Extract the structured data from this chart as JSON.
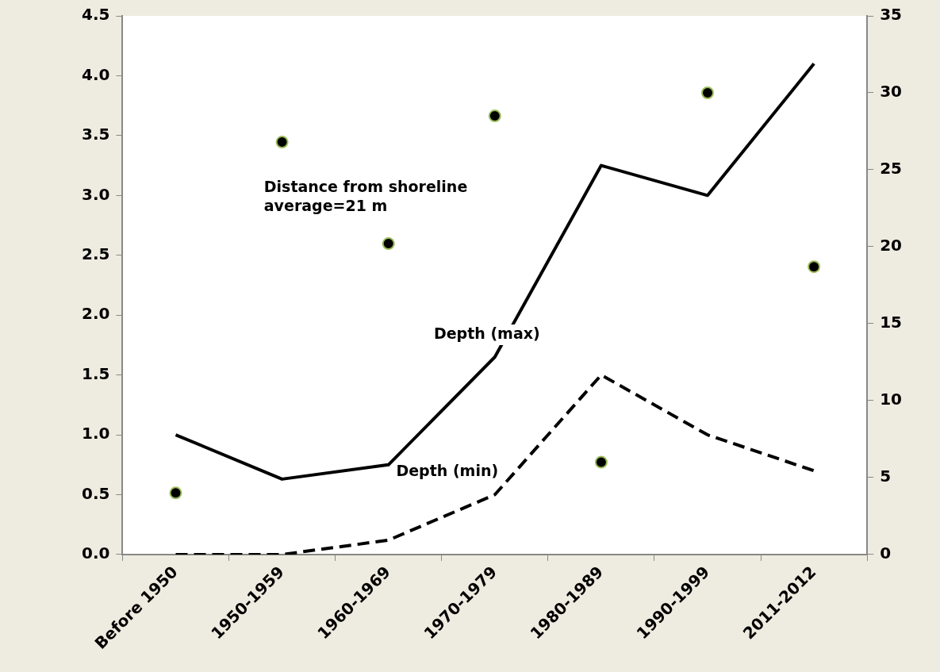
{
  "chart_data": {
    "type": "line",
    "categories": [
      "Before 1950",
      "1950-1959",
      "1960-1969",
      "1970-1979",
      "1980-1989",
      "1990-1999",
      "2011-2012"
    ],
    "series": [
      {
        "name": "Depth (max)",
        "color": "#000000",
        "line_style": "solid",
        "values": [
          1.0,
          0.63,
          0.75,
          1.65,
          3.25,
          3.0,
          4.1
        ]
      },
      {
        "name": "Depth (min)",
        "color": "#000000",
        "line_style": "dashed",
        "values": [
          0,
          0,
          0.12,
          0.5,
          1.5,
          1.0,
          0.7
        ]
      },
      {
        "type": "scatter",
        "axis": "y2",
        "color": "#9bbb59",
        "marker": "circle",
        "values": [
          4.0,
          26.8,
          20.2,
          28.5,
          6.0,
          30.0,
          18.7
        ]
      }
    ],
    "ylim": [
      0,
      4.5
    ],
    "yticks": [
      {
        "value": 0,
        "label": "0.0"
      },
      0.5,
      {
        "value": 1,
        "label": "1.0"
      },
      1.5,
      {
        "value": 2,
        "label": "2.0"
      },
      2.5,
      {
        "value": 3,
        "label": "3.0"
      },
      3.5,
      {
        "value": 4,
        "label": "4.0"
      },
      4.5
    ],
    "y2lim": [
      0,
      35
    ],
    "y2ticks": [
      0,
      5,
      10,
      15,
      20,
      25,
      30,
      35
    ],
    "annotations": [
      "Distance from shoreline average=21 m"
    ],
    "grid": false,
    "legend": false
  }
}
